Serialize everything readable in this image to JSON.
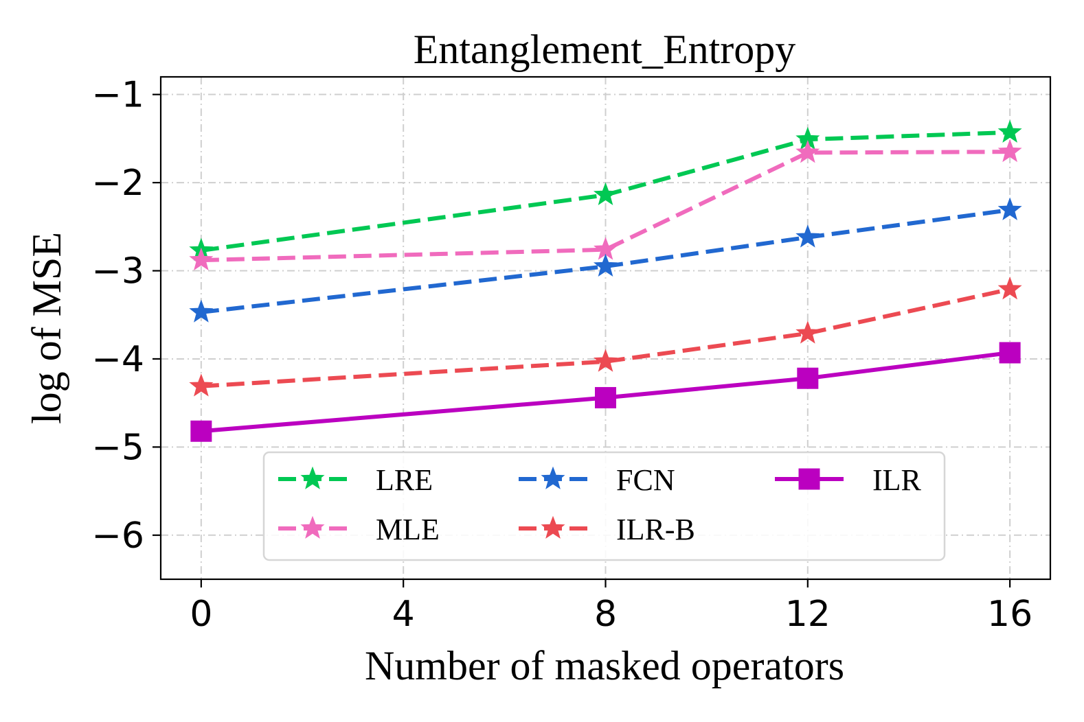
{
  "chart_data": {
    "type": "line",
    "title": "Entanglement_Entropy",
    "xlabel": "Number of masked operators",
    "ylabel": "log of MSE",
    "x": [
      0,
      8,
      12,
      16
    ],
    "xticks": [
      0,
      4,
      8,
      12,
      16
    ],
    "xtick_labels": [
      "0",
      "4",
      "8",
      "12",
      "16"
    ],
    "yticks": [
      -1,
      -2,
      -3,
      -4,
      -5,
      -6
    ],
    "ytick_labels": [
      "−1",
      "−2",
      "−3",
      "−4",
      "−5",
      "−6"
    ],
    "xlim": [
      -0.8,
      16.8
    ],
    "ylim": [
      -6.5,
      -0.8
    ],
    "grid": true,
    "legend_position": "lower-center",
    "series": [
      {
        "name": "LRE",
        "values": [
          -2.77,
          -2.14,
          -1.51,
          -1.43
        ],
        "color": "#00c853",
        "linestyle": "dashed",
        "marker": "star"
      },
      {
        "name": "MLE",
        "values": [
          -2.88,
          -2.76,
          -1.66,
          -1.65
        ],
        "color": "#f06bbd",
        "linestyle": "dashed",
        "marker": "star"
      },
      {
        "name": "FCN",
        "values": [
          -3.47,
          -2.95,
          -2.62,
          -2.31
        ],
        "color": "#2168d0",
        "linestyle": "dashed",
        "marker": "star"
      },
      {
        "name": "ILR-B",
        "values": [
          -4.31,
          -4.03,
          -3.71,
          -3.21
        ],
        "color": "#ec4a52",
        "linestyle": "dashed",
        "marker": "star"
      },
      {
        "name": "ILR",
        "values": [
          -4.82,
          -4.44,
          -4.22,
          -3.93
        ],
        "color": "#bb00c0",
        "linestyle": "solid",
        "marker": "square"
      }
    ]
  }
}
